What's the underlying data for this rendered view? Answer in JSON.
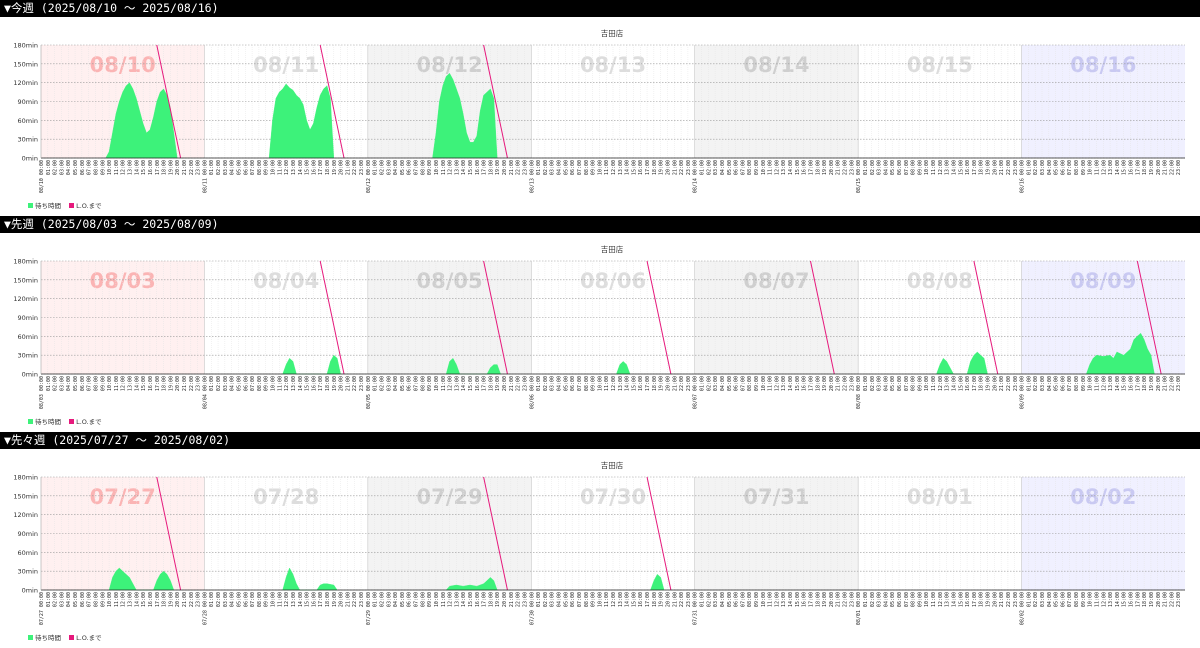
{
  "colors": {
    "wait": "#3df27a",
    "lo": "#e6197c",
    "day_red": "#fff0f0",
    "day_white": "#ffffff",
    "day_gray": "#f3f3f3",
    "day_blue": "#f0f0ff",
    "label_red": "#fbb4b4",
    "label_gray": "#dddddd",
    "label_darkgray": "#cfcfcf",
    "label_blue": "#c9c9f2"
  },
  "legend": {
    "wait_label": "待ち時間",
    "lo_label": "L.O.まで"
  },
  "weeks": [
    {
      "header": "▼今週 (2025/08/10 〜 2025/08/16)",
      "chart_data": {
        "type": "area",
        "title": "吉田店",
        "ylim": [
          0,
          180
        ],
        "yticks": [
          "0min",
          "30min",
          "60min",
          "90min",
          "120min",
          "150min",
          "180min"
        ],
        "grid": true,
        "legend_position": "bottom-left",
        "days": [
          {
            "label": "08/10",
            "date_tick": "08/10",
            "bg": "day_red",
            "label_color": "label_red",
            "wait": [
              [
                9.5,
                0
              ],
              [
                10,
                10
              ],
              [
                10.5,
                40
              ],
              [
                11,
                70
              ],
              [
                11.5,
                90
              ],
              [
                12,
                105
              ],
              [
                12.5,
                115
              ],
              [
                13,
                120
              ],
              [
                13.5,
                110
              ],
              [
                14,
                95
              ],
              [
                14.5,
                75
              ],
              [
                15,
                55
              ],
              [
                15.5,
                40
              ],
              [
                16,
                45
              ],
              [
                16.5,
                65
              ],
              [
                17,
                90
              ],
              [
                17.5,
                105
              ],
              [
                18,
                110
              ],
              [
                18.5,
                100
              ],
              [
                19,
                80
              ],
              [
                19.5,
                40
              ],
              [
                20,
                0
              ]
            ]
          },
          {
            "label": "08/11",
            "date_tick": "08/11",
            "bg": "day_white",
            "label_color": "label_gray",
            "wait": [
              [
                9.5,
                0
              ],
              [
                10,
                60
              ],
              [
                10.5,
                95
              ],
              [
                11,
                105
              ],
              [
                11.5,
                110
              ],
              [
                12,
                118
              ],
              [
                12.5,
                112
              ],
              [
                13,
                108
              ],
              [
                13.5,
                100
              ],
              [
                14,
                95
              ],
              [
                14.5,
                85
              ],
              [
                15,
                60
              ],
              [
                15.5,
                45
              ],
              [
                16,
                55
              ],
              [
                16.5,
                80
              ],
              [
                17,
                100
              ],
              [
                17.5,
                110
              ],
              [
                18,
                115
              ],
              [
                18.5,
                95
              ],
              [
                19,
                0
              ]
            ]
          },
          {
            "label": "08/12",
            "date_tick": "08/12",
            "bg": "day_gray",
            "label_color": "label_darkgray",
            "wait": [
              [
                9.5,
                0
              ],
              [
                10,
                40
              ],
              [
                10.5,
                90
              ],
              [
                11,
                115
              ],
              [
                11.5,
                130
              ],
              [
                12,
                135
              ],
              [
                12.5,
                125
              ],
              [
                13,
                110
              ],
              [
                13.5,
                95
              ],
              [
                14,
                70
              ],
              [
                14.5,
                40
              ],
              [
                15,
                25
              ],
              [
                15.5,
                25
              ],
              [
                16,
                35
              ],
              [
                16.5,
                75
              ],
              [
                17,
                100
              ],
              [
                17.5,
                105
              ],
              [
                18,
                110
              ],
              [
                18.5,
                95
              ],
              [
                19,
                0
              ]
            ]
          },
          {
            "label": "08/13",
            "date_tick": "08/13",
            "bg": "day_white",
            "label_color": "label_gray",
            "wait": []
          },
          {
            "label": "08/14",
            "date_tick": "08/14",
            "bg": "day_gray",
            "label_color": "label_darkgray",
            "wait": []
          },
          {
            "label": "08/15",
            "date_tick": "08/15",
            "bg": "day_white",
            "label_color": "label_gray",
            "wait": []
          },
          {
            "label": "08/16",
            "date_tick": "08/16",
            "bg": "day_blue",
            "label_color": "label_blue",
            "wait": []
          }
        ],
        "lo_lines": [
          {
            "day": 0,
            "x0": 17,
            "y0": 180,
            "x1": 20.5,
            "y1": 0
          },
          {
            "day": 1,
            "x0": 17,
            "y0": 180,
            "x1": 20.5,
            "y1": 0
          },
          {
            "day": 2,
            "x0": 17,
            "y0": 180,
            "x1": 20.5,
            "y1": 0
          }
        ]
      }
    },
    {
      "header": "▼先週 (2025/08/03 〜 2025/08/09)",
      "chart_data": {
        "type": "area",
        "title": "吉田店",
        "ylim": [
          0,
          180
        ],
        "yticks": [
          "0min",
          "30min",
          "60min",
          "90min",
          "120min",
          "150min",
          "180min"
        ],
        "grid": true,
        "legend_position": "bottom-left",
        "days": [
          {
            "label": "08/03",
            "date_tick": "08/03",
            "bg": "day_red",
            "label_color": "label_red",
            "wait": []
          },
          {
            "label": "08/04",
            "date_tick": "08/04",
            "bg": "day_white",
            "label_color": "label_gray",
            "wait": [
              [
                11.5,
                0
              ],
              [
                12,
                15
              ],
              [
                12.5,
                25
              ],
              [
                13,
                20
              ],
              [
                13.5,
                0
              ],
              [
                18,
                0
              ],
              [
                18.5,
                20
              ],
              [
                19,
                30
              ],
              [
                19.5,
                25
              ],
              [
                20,
                0
              ]
            ]
          },
          {
            "label": "08/05",
            "date_tick": "08/05",
            "bg": "day_gray",
            "label_color": "label_darkgray",
            "wait": [
              [
                11.5,
                0
              ],
              [
                12,
                20
              ],
              [
                12.5,
                25
              ],
              [
                13,
                15
              ],
              [
                13.5,
                0
              ],
              [
                17.5,
                0
              ],
              [
                18,
                10
              ],
              [
                18.5,
                15
              ],
              [
                19,
                15
              ],
              [
                19.5,
                0
              ]
            ]
          },
          {
            "label": "08/06",
            "date_tick": "08/06",
            "bg": "day_white",
            "label_color": "label_gray",
            "wait": [
              [
                12.5,
                0
              ],
              [
                13,
                15
              ],
              [
                13.5,
                20
              ],
              [
                14,
                15
              ],
              [
                14.5,
                0
              ]
            ]
          },
          {
            "label": "08/07",
            "date_tick": "08/07",
            "bg": "day_gray",
            "label_color": "label_darkgray",
            "wait": []
          },
          {
            "label": "08/08",
            "date_tick": "08/08",
            "bg": "day_white",
            "label_color": "label_gray",
            "wait": [
              [
                11.5,
                0
              ],
              [
                12,
                15
              ],
              [
                12.5,
                25
              ],
              [
                13,
                20
              ],
              [
                13.5,
                10
              ],
              [
                14,
                0
              ],
              [
                16,
                0
              ],
              [
                16.5,
                20
              ],
              [
                17,
                30
              ],
              [
                17.5,
                35
              ],
              [
                18,
                30
              ],
              [
                18.5,
                25
              ],
              [
                19,
                0
              ]
            ]
          },
          {
            "label": "08/09",
            "date_tick": "08/09",
            "bg": "day_blue",
            "label_color": "label_blue",
            "wait": [
              [
                9.5,
                0
              ],
              [
                10,
                15
              ],
              [
                10.5,
                25
              ],
              [
                11,
                30
              ],
              [
                12,
                28
              ],
              [
                13,
                30
              ],
              [
                13.5,
                25
              ],
              [
                14,
                35
              ],
              [
                15,
                30
              ],
              [
                16,
                40
              ],
              [
                16.5,
                55
              ],
              [
                17,
                60
              ],
              [
                17.5,
                65
              ],
              [
                18,
                55
              ],
              [
                18.5,
                40
              ],
              [
                19,
                30
              ],
              [
                19.5,
                0
              ]
            ]
          }
        ],
        "lo_lines": [
          {
            "day": 1,
            "x0": 17,
            "y0": 180,
            "x1": 20.5,
            "y1": 0
          },
          {
            "day": 2,
            "x0": 17,
            "y0": 180,
            "x1": 20.5,
            "y1": 0
          },
          {
            "day": 3,
            "x0": 17,
            "y0": 180,
            "x1": 20.5,
            "y1": 0
          },
          {
            "day": 4,
            "x0": 17,
            "y0": 180,
            "x1": 20.5,
            "y1": 0
          },
          {
            "day": 5,
            "x0": 17,
            "y0": 180,
            "x1": 20.5,
            "y1": 0
          },
          {
            "day": 6,
            "x0": 17,
            "y0": 180,
            "x1": 20.5,
            "y1": 0
          }
        ]
      }
    },
    {
      "header": "▼先々週 (2025/07/27 〜 2025/08/02)",
      "chart_data": {
        "type": "area",
        "title": "吉田店",
        "ylim": [
          0,
          180
        ],
        "yticks": [
          "0min",
          "30min",
          "60min",
          "90min",
          "120min",
          "150min",
          "180min"
        ],
        "grid": true,
        "legend_position": "bottom-left",
        "days": [
          {
            "label": "07/27",
            "date_tick": "07/27",
            "bg": "day_red",
            "label_color": "label_red",
            "wait": [
              [
                10,
                0
              ],
              [
                10.5,
                20
              ],
              [
                11,
                30
              ],
              [
                11.5,
                35
              ],
              [
                12,
                30
              ],
              [
                12.5,
                25
              ],
              [
                13,
                20
              ],
              [
                13.5,
                10
              ],
              [
                14,
                0
              ],
              [
                16.5,
                0
              ],
              [
                17,
                15
              ],
              [
                17.5,
                25
              ],
              [
                18,
                30
              ],
              [
                18.5,
                25
              ],
              [
                19,
                15
              ],
              [
                19.5,
                0
              ]
            ]
          },
          {
            "label": "07/28",
            "date_tick": "07/28",
            "bg": "day_white",
            "label_color": "label_gray",
            "wait": [
              [
                11.5,
                0
              ],
              [
                12,
                20
              ],
              [
                12.5,
                35
              ],
              [
                13,
                25
              ],
              [
                13.5,
                10
              ],
              [
                14,
                0
              ],
              [
                16.5,
                0
              ],
              [
                17,
                8
              ],
              [
                17.5,
                10
              ],
              [
                18,
                10
              ],
              [
                19,
                8
              ],
              [
                19.5,
                0
              ]
            ]
          },
          {
            "label": "07/29",
            "date_tick": "07/29",
            "bg": "day_gray",
            "label_color": "label_darkgray",
            "wait": [
              [
                11.5,
                0
              ],
              [
                12,
                6
              ],
              [
                13,
                8
              ],
              [
                14,
                6
              ],
              [
                15,
                8
              ],
              [
                16,
                6
              ],
              [
                17,
                10
              ],
              [
                17.5,
                15
              ],
              [
                18,
                20
              ],
              [
                18.5,
                15
              ],
              [
                19,
                0
              ]
            ]
          },
          {
            "label": "07/30",
            "date_tick": "07/30",
            "bg": "day_white",
            "label_color": "label_gray",
            "wait": [
              [
                17.5,
                0
              ],
              [
                18,
                15
              ],
              [
                18.5,
                25
              ],
              [
                19,
                20
              ],
              [
                19.5,
                0
              ]
            ]
          },
          {
            "label": "07/31",
            "date_tick": "07/31",
            "bg": "day_gray",
            "label_color": "label_darkgray",
            "wait": []
          },
          {
            "label": "08/01",
            "date_tick": "08/01",
            "bg": "day_white",
            "label_color": "label_gray",
            "wait": []
          },
          {
            "label": "08/02",
            "date_tick": "08/02",
            "bg": "day_blue",
            "label_color": "label_blue",
            "wait": []
          }
        ],
        "lo_lines": [
          {
            "day": 0,
            "x0": 17,
            "y0": 180,
            "x1": 20.5,
            "y1": 0
          },
          {
            "day": 2,
            "x0": 17,
            "y0": 180,
            "x1": 20.5,
            "y1": 0
          },
          {
            "day": 3,
            "x0": 17,
            "y0": 180,
            "x1": 20.5,
            "y1": 0
          }
        ]
      }
    }
  ]
}
